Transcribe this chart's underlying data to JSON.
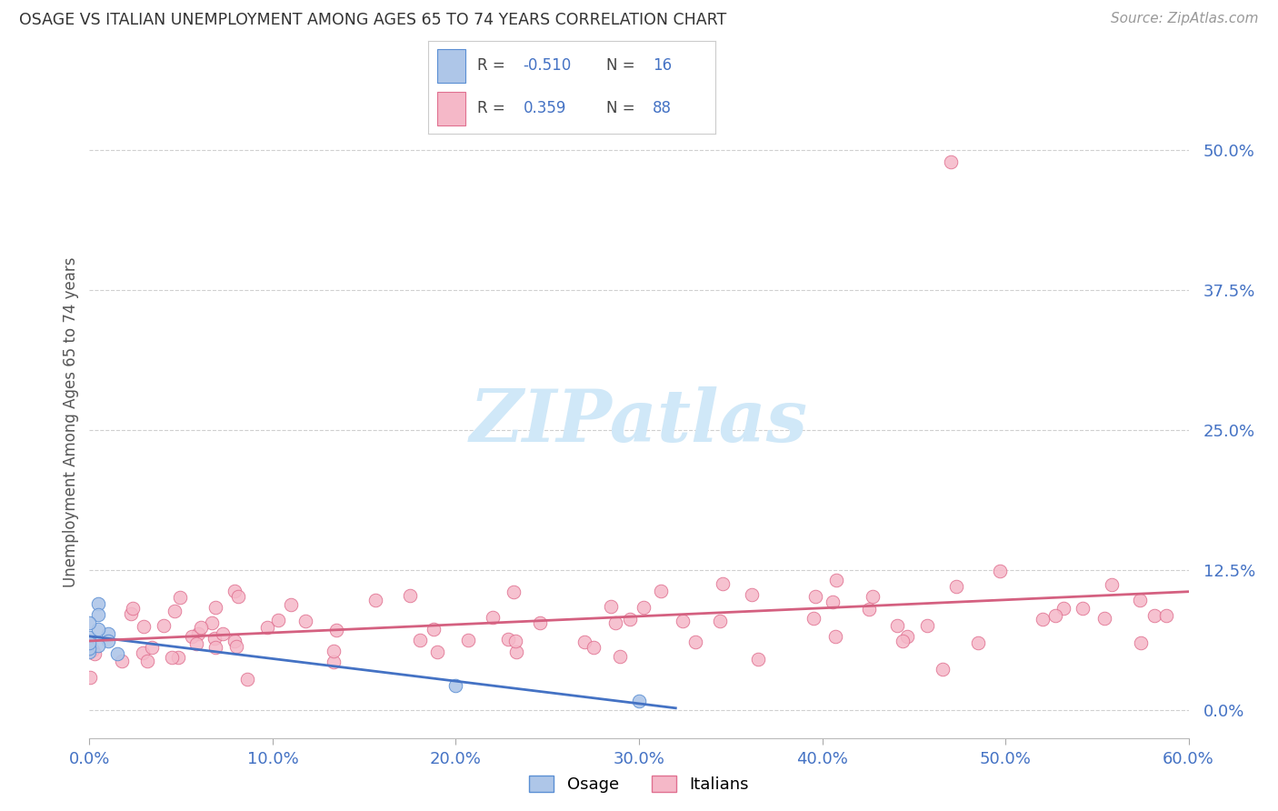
{
  "title": "OSAGE VS ITALIAN UNEMPLOYMENT AMONG AGES 65 TO 74 YEARS CORRELATION CHART",
  "source": "Source: ZipAtlas.com",
  "ylabel": "Unemployment Among Ages 65 to 74 years",
  "xlim": [
    0.0,
    0.6
  ],
  "ylim": [
    -0.025,
    0.54
  ],
  "ytick_vals": [
    0.0,
    0.125,
    0.25,
    0.375,
    0.5
  ],
  "ytick_labels": [
    "0.0%",
    "12.5%",
    "25.0%",
    "37.5%",
    "50.0%"
  ],
  "xtick_vals": [
    0.0,
    0.1,
    0.2,
    0.3,
    0.4,
    0.5,
    0.6
  ],
  "xtick_labels": [
    "0.0%",
    "10.0%",
    "20.0%",
    "30.0%",
    "40.0%",
    "50.0%",
    "60.0%"
  ],
  "osage_face_color": "#aec6e8",
  "osage_edge_color": "#5b8fd4",
  "italian_face_color": "#f5b8c8",
  "italian_edge_color": "#e07090",
  "osage_line_color": "#4472c4",
  "italian_line_color": "#d46080",
  "tick_color": "#4472c4",
  "grid_color": "#d0d0d0",
  "background_color": "#ffffff",
  "watermark_color": "#d0e8f8",
  "title_color": "#333333",
  "source_color": "#999999",
  "ylabel_color": "#555555",
  "osage_R": "-0.510",
  "osage_N": "16",
  "italian_R": "0.359",
  "italian_N": "88",
  "legend_label_osage": "Osage",
  "legend_label_italian": "Italians"
}
